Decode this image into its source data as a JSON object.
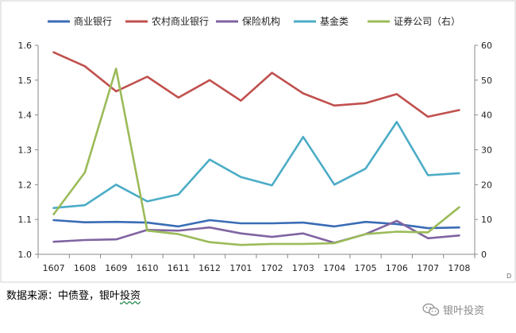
{
  "chart_data": {
    "type": "line",
    "categories": [
      "1607",
      "1608",
      "1609",
      "1610",
      "1611",
      "1612",
      "1701",
      "1702",
      "1703",
      "1704",
      "1705",
      "1706",
      "1707",
      "1708"
    ],
    "series": [
      {
        "name": "商业银行",
        "axis": "left",
        "color": "#3a6cb5",
        "values": [
          1.098,
          1.092,
          1.093,
          1.091,
          1.08,
          1.098,
          1.089,
          1.089,
          1.091,
          1.08,
          1.093,
          1.087,
          1.075,
          1.077
        ]
      },
      {
        "name": "农村商业银行",
        "axis": "left",
        "color": "#c0504d",
        "values": [
          1.58,
          1.54,
          1.468,
          1.51,
          1.45,
          1.5,
          1.441,
          1.521,
          1.462,
          1.427,
          1.434,
          1.46,
          1.395,
          1.414
        ]
      },
      {
        "name": "保险机构",
        "axis": "left",
        "color": "#8064a2",
        "values": [
          1.036,
          1.041,
          1.043,
          1.07,
          1.068,
          1.077,
          1.06,
          1.05,
          1.06,
          1.033,
          1.058,
          1.096,
          1.046,
          1.054
        ]
      },
      {
        "name": "基金类",
        "axis": "left",
        "color": "#4bacc6",
        "values": [
          1.133,
          1.141,
          1.2,
          1.152,
          1.172,
          1.272,
          1.222,
          1.198,
          1.337,
          1.2,
          1.246,
          1.38,
          1.227,
          1.233
        ]
      },
      {
        "name": "证券公司（右）",
        "axis": "right",
        "color": "#9bbb59",
        "values": [
          11.5,
          23.5,
          53.3,
          6.8,
          5.8,
          3.5,
          2.7,
          3.0,
          3.0,
          3.2,
          5.8,
          6.5,
          6.3,
          13.5
        ]
      }
    ],
    "y_left": {
      "min": 1.0,
      "max": 1.6,
      "ticks": [
        "1.0",
        "1.1",
        "1.2",
        "1.3",
        "1.4",
        "1.5",
        "1.6"
      ]
    },
    "y_right": {
      "min": 0,
      "max": 60,
      "ticks": [
        "0",
        "10",
        "20",
        "30",
        "40",
        "50",
        "60"
      ]
    },
    "legend_position": "top",
    "grid": false
  },
  "source_label": "数据来源：中债登，银叶投资",
  "source_prefix": "数据来源：中债登，银叶",
  "source_suffix": "投资",
  "watermark_text": "银叶投资",
  "watermark_icon": "wechat-icon",
  "corner_mark": "D"
}
